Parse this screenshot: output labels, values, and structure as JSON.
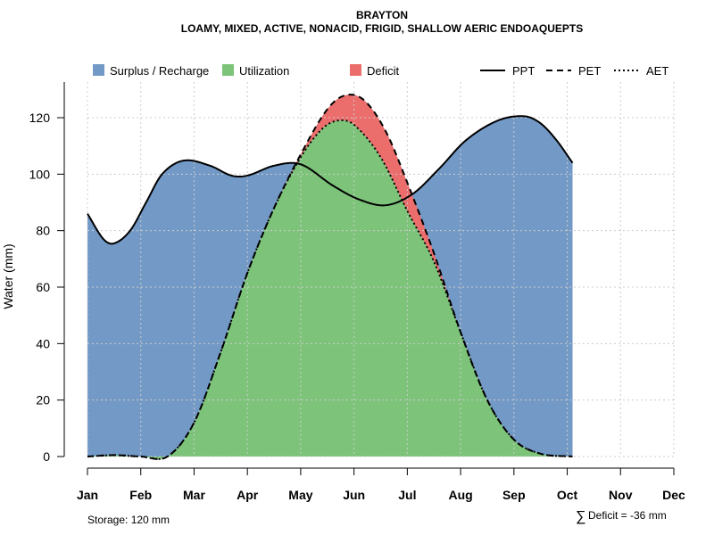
{
  "chart_data": {
    "type": "area",
    "title": "BRAYTON",
    "subtitle": "LOAMY, MIXED, ACTIVE, NONACID, FRIGID, SHALLOW AERIC ENDOAQUEPTS",
    "ylabel": "Water (mm)",
    "ylim": [
      0,
      130
    ],
    "yticks": [
      0,
      20,
      40,
      60,
      80,
      100,
      120
    ],
    "grid": true,
    "legend_position": "top",
    "months": [
      "Jan",
      "Feb",
      "Mar",
      "Apr",
      "May",
      "Jun",
      "Jul",
      "Aug",
      "Sep",
      "Oct",
      "Nov",
      "Dec"
    ],
    "series": [
      {
        "name": "PPT",
        "style": "solid",
        "values": [
          [
            1,
            86
          ],
          [
            1.3,
            77
          ],
          [
            1.5,
            75.5
          ],
          [
            1.8,
            80
          ],
          [
            2.1,
            90
          ],
          [
            2.4,
            100
          ],
          [
            2.8,
            104.8
          ],
          [
            3.3,
            103
          ],
          [
            3.7,
            99.5
          ],
          [
            4.0,
            99.5
          ],
          [
            4.5,
            103
          ],
          [
            5.0,
            103.5
          ],
          [
            5.6,
            96
          ],
          [
            6.1,
            91
          ],
          [
            6.6,
            89
          ],
          [
            7.1,
            93
          ],
          [
            7.6,
            102
          ],
          [
            8.1,
            112
          ],
          [
            8.7,
            119
          ],
          [
            9.2,
            120.5
          ],
          [
            9.5,
            118
          ],
          [
            9.8,
            112
          ],
          [
            10.1,
            104
          ]
        ]
      },
      {
        "name": "PET",
        "style": "dashed",
        "values": [
          [
            1,
            0
          ],
          [
            1.5,
            0.5
          ],
          [
            2.0,
            0
          ],
          [
            2.5,
            0
          ],
          [
            3.0,
            12
          ],
          [
            3.5,
            37
          ],
          [
            4.0,
            65
          ],
          [
            4.5,
            88
          ],
          [
            5.0,
            107
          ],
          [
            5.5,
            123
          ],
          [
            5.85,
            128
          ],
          [
            6.2,
            126
          ],
          [
            6.6,
            115
          ],
          [
            7.0,
            97
          ],
          [
            7.5,
            72
          ],
          [
            8.0,
            44
          ],
          [
            8.5,
            20
          ],
          [
            9.0,
            6
          ],
          [
            9.5,
            1
          ],
          [
            10.1,
            0
          ]
        ]
      },
      {
        "name": "AET",
        "style": "dotted",
        "values": [
          [
            1,
            0
          ],
          [
            1.5,
            0.5
          ],
          [
            2.0,
            0
          ],
          [
            2.5,
            0
          ],
          [
            3.0,
            12
          ],
          [
            3.5,
            37
          ],
          [
            4.0,
            65
          ],
          [
            4.5,
            88
          ],
          [
            5.0,
            106
          ],
          [
            5.4,
            116
          ],
          [
            5.7,
            119
          ],
          [
            6.0,
            117.5
          ],
          [
            6.5,
            106
          ],
          [
            7.0,
            87
          ],
          [
            7.5,
            69
          ],
          [
            8.0,
            44
          ],
          [
            8.5,
            20
          ],
          [
            9.0,
            6
          ],
          [
            9.5,
            1
          ],
          [
            10.1,
            0
          ]
        ]
      }
    ],
    "areas": [
      {
        "name": "Surplus / Recharge",
        "color": "#7399C6"
      },
      {
        "name": "Utilization",
        "color": "#7DC47A"
      },
      {
        "name": "Deficit",
        "color": "#EB6E6C"
      }
    ],
    "annotations": {
      "storage": "Storage: 120 mm",
      "deficit": "Deficit = -36 mm",
      "deficit_symbol": "∑"
    }
  }
}
